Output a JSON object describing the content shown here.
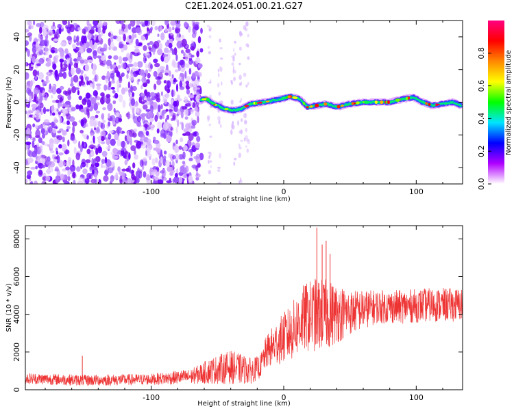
{
  "chart_data": [
    {
      "type": "heatmap",
      "title": "C2E1.2024.051.00.21.G27",
      "xlabel": "Height of straight line (km)",
      "ylabel": "Frequency (Hz)",
      "xlim": [
        -195,
        135
      ],
      "ylim": [
        -50,
        50
      ],
      "x_ticks": [
        -100,
        0,
        100
      ],
      "y_ticks": [
        -40,
        -20,
        0,
        20,
        40
      ],
      "grid": false,
      "colorbar": {
        "label": "Normalized spectral amplitude",
        "range": [
          0,
          1
        ],
        "ticks": [
          0.0,
          0.2,
          0.4,
          0.6,
          0.8
        ],
        "colors": [
          "#ffffff",
          "#b000ff",
          "#0000ff",
          "#00e5ff",
          "#00ff00",
          "#ffff00",
          "#ff8800",
          "#ff0000",
          "#ff0080"
        ]
      },
      "signal_trace": [
        {
          "x": -63,
          "y": 1.5
        },
        {
          "x": -58,
          "y": 2
        },
        {
          "x": -52,
          "y": -1.5
        },
        {
          "x": -45,
          "y": -4
        },
        {
          "x": -38,
          "y": -5
        },
        {
          "x": -32,
          "y": -4
        },
        {
          "x": -25,
          "y": -1
        },
        {
          "x": -15,
          "y": 0
        },
        {
          "x": -5,
          "y": 1.5
        },
        {
          "x": 5,
          "y": 3.5
        },
        {
          "x": 12,
          "y": 2
        },
        {
          "x": 18,
          "y": -3
        },
        {
          "x": 25,
          "y": -2
        },
        {
          "x": 32,
          "y": -1
        },
        {
          "x": 40,
          "y": -3
        },
        {
          "x": 50,
          "y": -1
        },
        {
          "x": 60,
          "y": 0
        },
        {
          "x": 70,
          "y": 0
        },
        {
          "x": 80,
          "y": 0
        },
        {
          "x": 90,
          "y": 2
        },
        {
          "x": 98,
          "y": 3
        },
        {
          "x": 105,
          "y": 0
        },
        {
          "x": 112,
          "y": -2
        },
        {
          "x": 120,
          "y": -1
        },
        {
          "x": 128,
          "y": 0
        },
        {
          "x": 134,
          "y": -2
        }
      ]
    },
    {
      "type": "line",
      "title": "",
      "xlabel": "Height of straight line (km)",
      "ylabel": "SNR (10 * v/v)",
      "xlim": [
        -195,
        135
      ],
      "ylim": [
        0,
        8700
      ],
      "x_ticks": [
        -100,
        0,
        100
      ],
      "y_ticks": [
        0,
        2000,
        4000,
        6000,
        8000
      ],
      "grid": false,
      "series_color": "#ee3333",
      "envelope": [
        {
          "x": -195,
          "mean": 600,
          "spread": 300
        },
        {
          "x": -150,
          "mean": 500,
          "spread": 300
        },
        {
          "x": -100,
          "mean": 550,
          "spread": 300
        },
        {
          "x": -70,
          "mean": 700,
          "spread": 400
        },
        {
          "x": -55,
          "mean": 1000,
          "spread": 700
        },
        {
          "x": -40,
          "mean": 1200,
          "spread": 900
        },
        {
          "x": -25,
          "mean": 1000,
          "spread": 700
        },
        {
          "x": -18,
          "mean": 1200,
          "spread": 600
        },
        {
          "x": -13,
          "mean": 2000,
          "spread": 900
        },
        {
          "x": -5,
          "mean": 2500,
          "spread": 1200
        },
        {
          "x": 5,
          "mean": 3000,
          "spread": 1500
        },
        {
          "x": 15,
          "mean": 3800,
          "spread": 1800
        },
        {
          "x": 25,
          "mean": 4000,
          "spread": 2000
        },
        {
          "x": 35,
          "mean": 4000,
          "spread": 1800
        },
        {
          "x": 50,
          "mean": 4100,
          "spread": 1200
        },
        {
          "x": 70,
          "mean": 4400,
          "spread": 900
        },
        {
          "x": 90,
          "mean": 4400,
          "spread": 900
        },
        {
          "x": 110,
          "mean": 4500,
          "spread": 900
        },
        {
          "x": 135,
          "mean": 4500,
          "spread": 900
        }
      ],
      "spikes": [
        {
          "x": -152,
          "y": 1800
        },
        {
          "x": 25,
          "y": 8600
        },
        {
          "x": 29,
          "y": 7700
        },
        {
          "x": 32,
          "y": 7900
        },
        {
          "x": 35,
          "y": 7200
        }
      ]
    }
  ]
}
